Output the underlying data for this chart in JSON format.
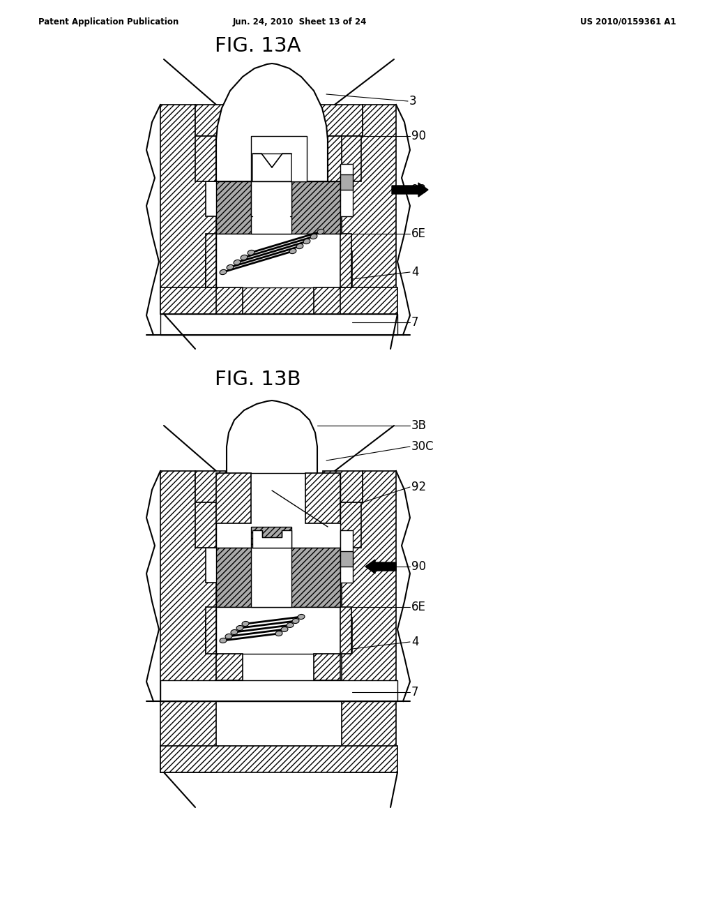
{
  "bg_color": "#ffffff",
  "lc": "#000000",
  "wf": "#ffffff",
  "gf": "#aaaaaa",
  "header_left": "Patent Application Publication",
  "header_mid": "Jun. 24, 2010  Sheet 13 of 24",
  "header_right": "US 2010/0159361 A1",
  "fig_title_A": "FIG. 13A",
  "fig_title_B": "FIG. 13B"
}
